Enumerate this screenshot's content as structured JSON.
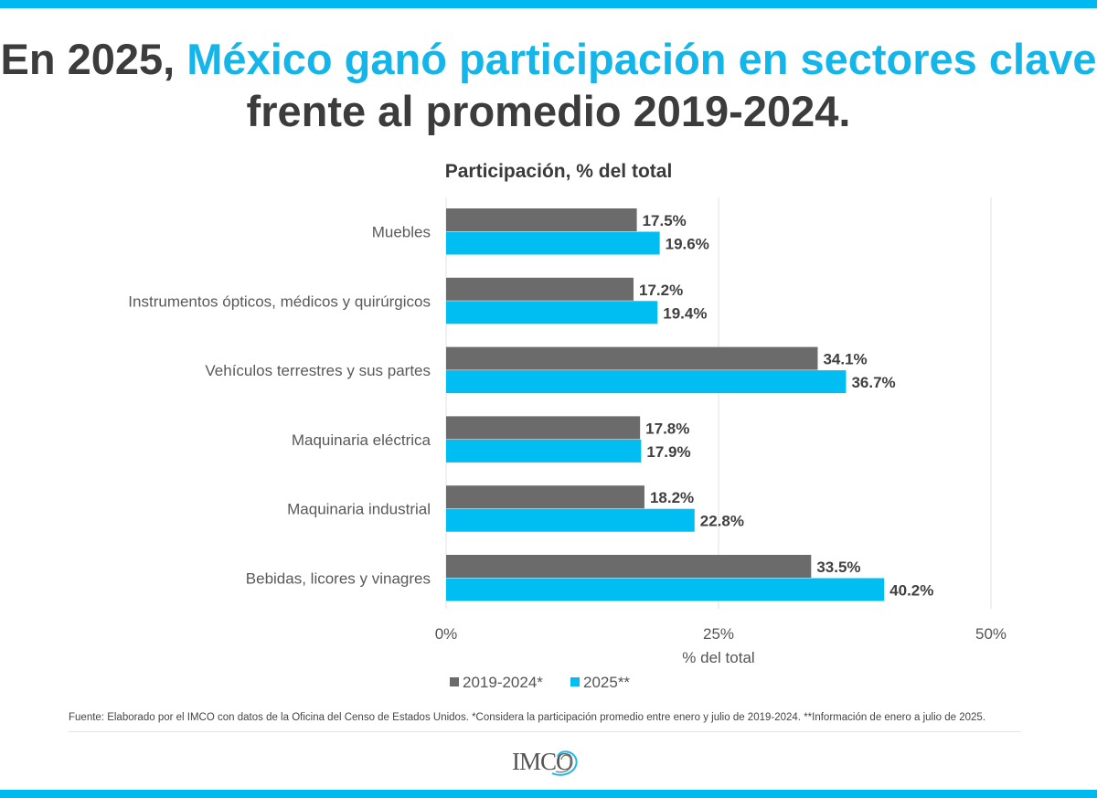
{
  "headline": {
    "part1": "En 2025, ",
    "highlight": "México ganó participación en sectores clave",
    "part2": " frente al promedio 2019-2024."
  },
  "colors": {
    "accent": "#00b9ee",
    "series_2019": "#6b6b6c",
    "series_2025": "#00bdf2"
  },
  "chart_data": {
    "type": "bar",
    "orientation": "horizontal",
    "title": "Participación, % del total",
    "xlabel": "% del total",
    "ylabel": "",
    "xlim": [
      0,
      50
    ],
    "xticks": [
      0,
      25,
      50
    ],
    "xtick_labels": [
      "0%",
      "25%",
      "50%"
    ],
    "grid": true,
    "legend_position": "bottom-center",
    "categories": [
      "Muebles",
      "Instrumentos ópticos, médicos y quirúrgicos",
      "Vehículos terrestres y sus partes",
      "Maquinaria eléctrica",
      "Maquinaria industrial",
      "Bebidas, licores y vinagres"
    ],
    "series": [
      {
        "name": "2019-2024*",
        "values": [
          17.5,
          17.2,
          34.1,
          17.8,
          18.2,
          33.5
        ],
        "labels": [
          "17.5%",
          "17.2%",
          "34.1%",
          "17.8%",
          "18.2%",
          "33.5%"
        ]
      },
      {
        "name": "2025**",
        "values": [
          19.6,
          19.4,
          36.7,
          17.9,
          22.8,
          40.2
        ],
        "labels": [
          "19.6%",
          "19.4%",
          "36.7%",
          "17.9%",
          "22.8%",
          "40.2%"
        ]
      }
    ]
  },
  "source": "Fuente: Elaborado por el IMCO con datos de la Oficina del Censo de Estados Unidos. *Considera la participación promedio entre enero y julio de 2019-2024. **Información de enero a julio de 2025.",
  "logo": {
    "text": "IMCO",
    "icon": "imco-swirl-icon"
  }
}
